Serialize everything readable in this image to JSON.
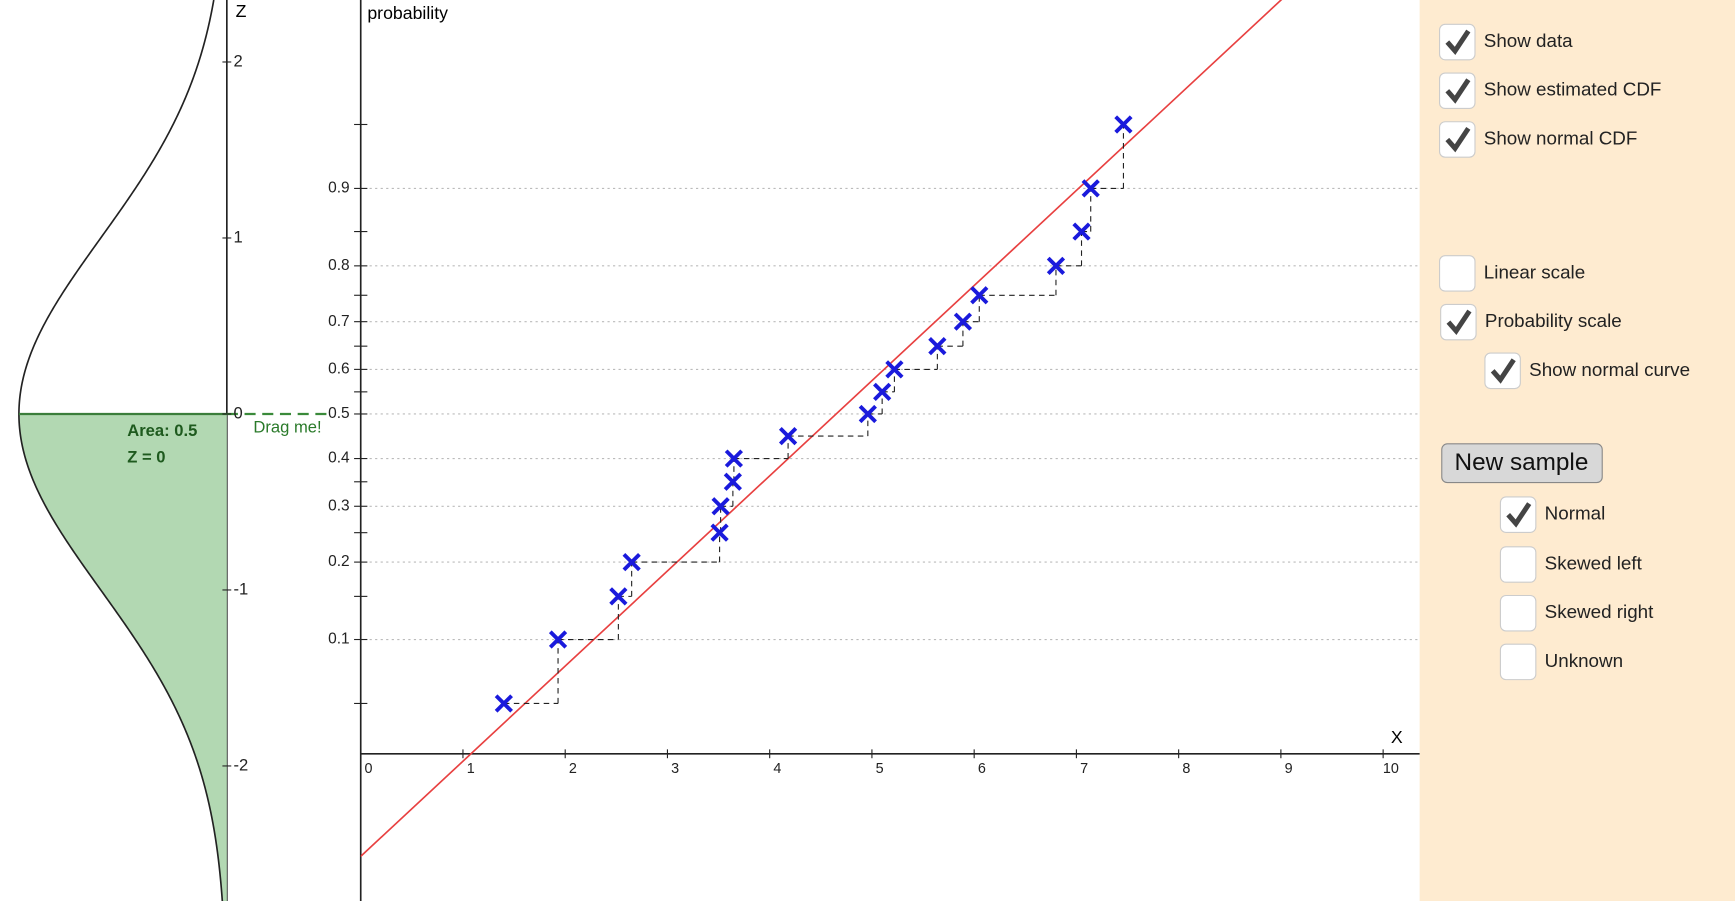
{
  "left_panel": {
    "axis_label": "Z",
    "ticks": [
      -2,
      -1,
      0,
      1,
      2
    ],
    "z": 0,
    "area_label": "Area: 0.5",
    "z_label": "Z = 0",
    "drag_label": "Drag me!"
  },
  "plot": {
    "y_axis_label": "probability",
    "x_axis_label": "X",
    "xticks": [
      0,
      1,
      2,
      3,
      4,
      5,
      6,
      7,
      8,
      9,
      10
    ],
    "yticks": [
      0.1,
      0.2,
      0.3,
      0.4,
      0.5,
      0.6,
      0.7,
      0.8,
      0.9
    ],
    "minor_yticks": [
      0.05,
      0.15,
      0.25,
      0.35,
      0.55,
      0.65,
      0.75,
      0.85,
      0.95
    ],
    "points": {
      "x": [
        1.4,
        1.93,
        2.52,
        2.65,
        3.51,
        3.52,
        3.64,
        3.65,
        4.18,
        4.96,
        5.1,
        5.22,
        5.64,
        5.89,
        6.05,
        6.8,
        7.05,
        7.14,
        7.46
      ],
      "p": [
        0.05,
        0.1,
        0.15,
        0.2,
        0.25,
        0.3,
        0.35,
        0.4,
        0.45,
        0.5,
        0.55,
        0.6,
        0.65,
        0.7,
        0.75,
        0.8,
        0.85,
        0.9,
        0.95
      ]
    },
    "normal_cdf": {
      "mean": 4.65,
      "sd": 1.85
    }
  },
  "controls": {
    "checkboxes": [
      {
        "label": "Show data",
        "checked": true
      },
      {
        "label": "Show estimated CDF",
        "checked": true
      },
      {
        "label": "Show normal CDF",
        "checked": true
      },
      {
        "label": "Linear scale",
        "checked": false
      },
      {
        "label": "Probability scale",
        "checked": true
      },
      {
        "label": "Show normal curve",
        "checked": true
      }
    ],
    "button": "New sample",
    "distributions": [
      {
        "label": "Normal",
        "checked": true
      },
      {
        "label": "Skewed left",
        "checked": false
      },
      {
        "label": "Skewed right",
        "checked": false
      },
      {
        "label": "Unknown",
        "checked": false
      }
    ]
  }
}
